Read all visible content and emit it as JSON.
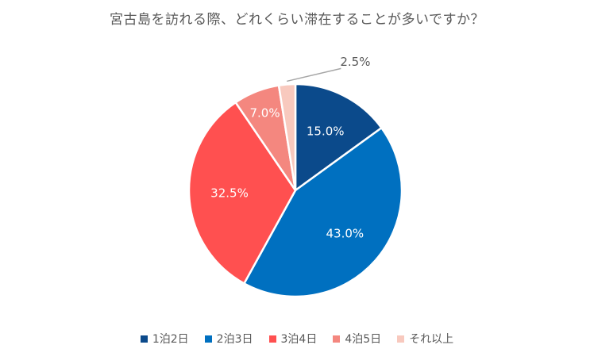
{
  "chart_data": {
    "type": "pie",
    "title": "宮古島を訪れる際、どれくらい滞在することが多いですか？",
    "categories": [
      "1泊2日",
      "2泊3日",
      "3泊4日",
      "4泊5日",
      "それ以上"
    ],
    "values": [
      15.0,
      43.0,
      32.5,
      7.0,
      2.5
    ],
    "value_labels": [
      "15.0%",
      "43.0%",
      "32.5%",
      "7.0%",
      "2.5%"
    ],
    "colors": [
      "#0B4A8B",
      "#0070C0",
      "#FF5050",
      "#F4877F",
      "#F8C9BE"
    ],
    "label_colors": [
      "#ffffff",
      "#ffffff",
      "#ffffff",
      "#ffffff",
      "#595959"
    ],
    "legend_position": "bottom",
    "start_angle": "12 o'clock, clockwise"
  }
}
